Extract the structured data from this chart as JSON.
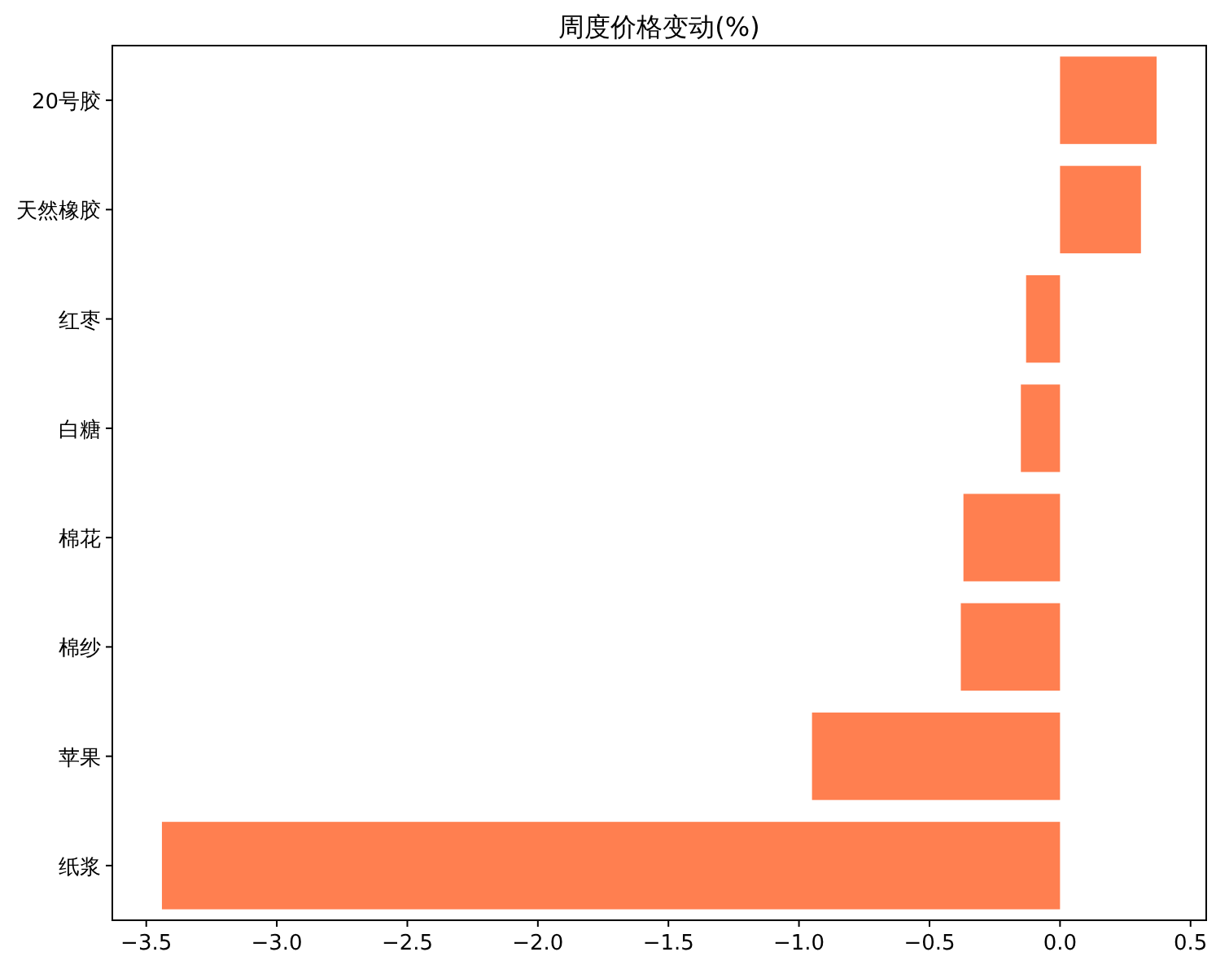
{
  "chart_data": {
    "type": "bar",
    "orientation": "horizontal",
    "title": "周度价格变动(%)",
    "categories": [
      "20号胶",
      "天然橡胶",
      "红枣",
      "白糖",
      "棉花",
      "棉纱",
      "苹果",
      "纸浆"
    ],
    "values": [
      0.37,
      0.31,
      -0.13,
      -0.15,
      -0.37,
      -0.38,
      -0.95,
      -3.44
    ],
    "color": "#ff7f50",
    "xlim": [
      -3.63,
      0.56
    ],
    "xticks": [
      {
        "value": -3.5,
        "label": "−3.5"
      },
      {
        "value": -3.0,
        "label": "−3.0"
      },
      {
        "value": -2.5,
        "label": "−2.5"
      },
      {
        "value": -2.0,
        "label": "−2.0"
      },
      {
        "value": -1.5,
        "label": "−1.5"
      },
      {
        "value": -1.0,
        "label": "−1.0"
      },
      {
        "value": -0.5,
        "label": "−0.5"
      },
      {
        "value": 0.0,
        "label": "0.0"
      },
      {
        "value": 0.5,
        "label": "0.5"
      }
    ],
    "grid": false
  }
}
